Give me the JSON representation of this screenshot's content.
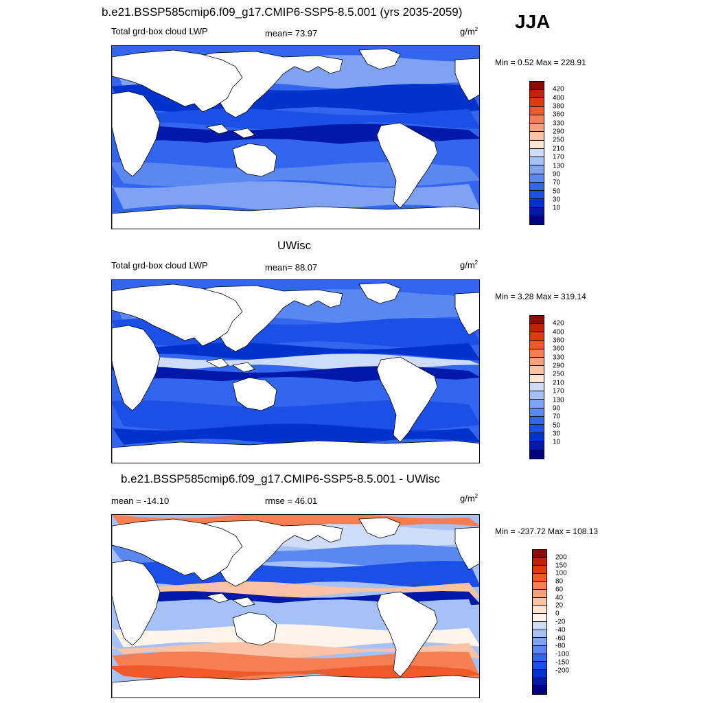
{
  "season": "JJA",
  "colors": {
    "lwp_scale": [
      "#000080",
      "#0019a8",
      "#0033cc",
      "#1a50e6",
      "#3366ee",
      "#5b87f0",
      "#7fa3f2",
      "#a6c1f5",
      "#cfdcf7",
      "#fde5d3",
      "#fbc3a4",
      "#f8a07a",
      "#f57e52",
      "#f05a2a",
      "#e03a0e",
      "#c02206",
      "#8b0c00"
    ],
    "diff_scale": [
      "#000080",
      "#0019a8",
      "#0033cc",
      "#1a50e6",
      "#3366ee",
      "#5b87f0",
      "#7fa3f2",
      "#a6c1f5",
      "#cfdcf7",
      "#fff4ea",
      "#fde5d3",
      "#fbc3a4",
      "#f8a07a",
      "#f57e52",
      "#f05a2a",
      "#e03a0e",
      "#c02206",
      "#8b0c00"
    ],
    "land": "#ffffff",
    "coast": "#000000"
  },
  "panels": [
    {
      "title": "b.e21.BSSP585cmip6.f09_g17.CMIP6-SSP5-8.5.001 (yrs 2035-2059)",
      "left_label": "Total grd-box cloud LWP",
      "center_label": "mean=  73.97",
      "units_base": "g/m",
      "units_exp": "2",
      "minmax": "Min =   0.52 Max = 228.91",
      "colorbar_labels": [
        "420",
        "400",
        "380",
        "360",
        "330",
        "290",
        "250",
        "210",
        "170",
        "130",
        "90",
        "70",
        "50",
        "30",
        "10"
      ]
    },
    {
      "title": "UWisc",
      "left_label": "Total grd-box cloud LWP",
      "center_label": "mean=  88.07",
      "units_base": "g/m",
      "units_exp": "2",
      "minmax": "Min =   3.28 Max = 319.14",
      "colorbar_labels": [
        "420",
        "400",
        "380",
        "360",
        "330",
        "290",
        "250",
        "210",
        "170",
        "130",
        "90",
        "70",
        "50",
        "30",
        "10"
      ]
    },
    {
      "title": "b.e21.BSSP585cmip6.f09_g17.CMIP6-SSP5-8.5.001 - UWisc",
      "left_label": "mean = -14.10",
      "center_label": "rmse =  46.01",
      "units_base": "g/m",
      "units_exp": "2",
      "minmax": "Min = -237.72 Max = 108.13",
      "colorbar_labels": [
        "200",
        "150",
        "100",
        "80",
        "60",
        "40",
        "20",
        "0",
        "-20",
        "-40",
        "-60",
        "-80",
        "-100",
        "-150",
        "-200"
      ]
    }
  ]
}
